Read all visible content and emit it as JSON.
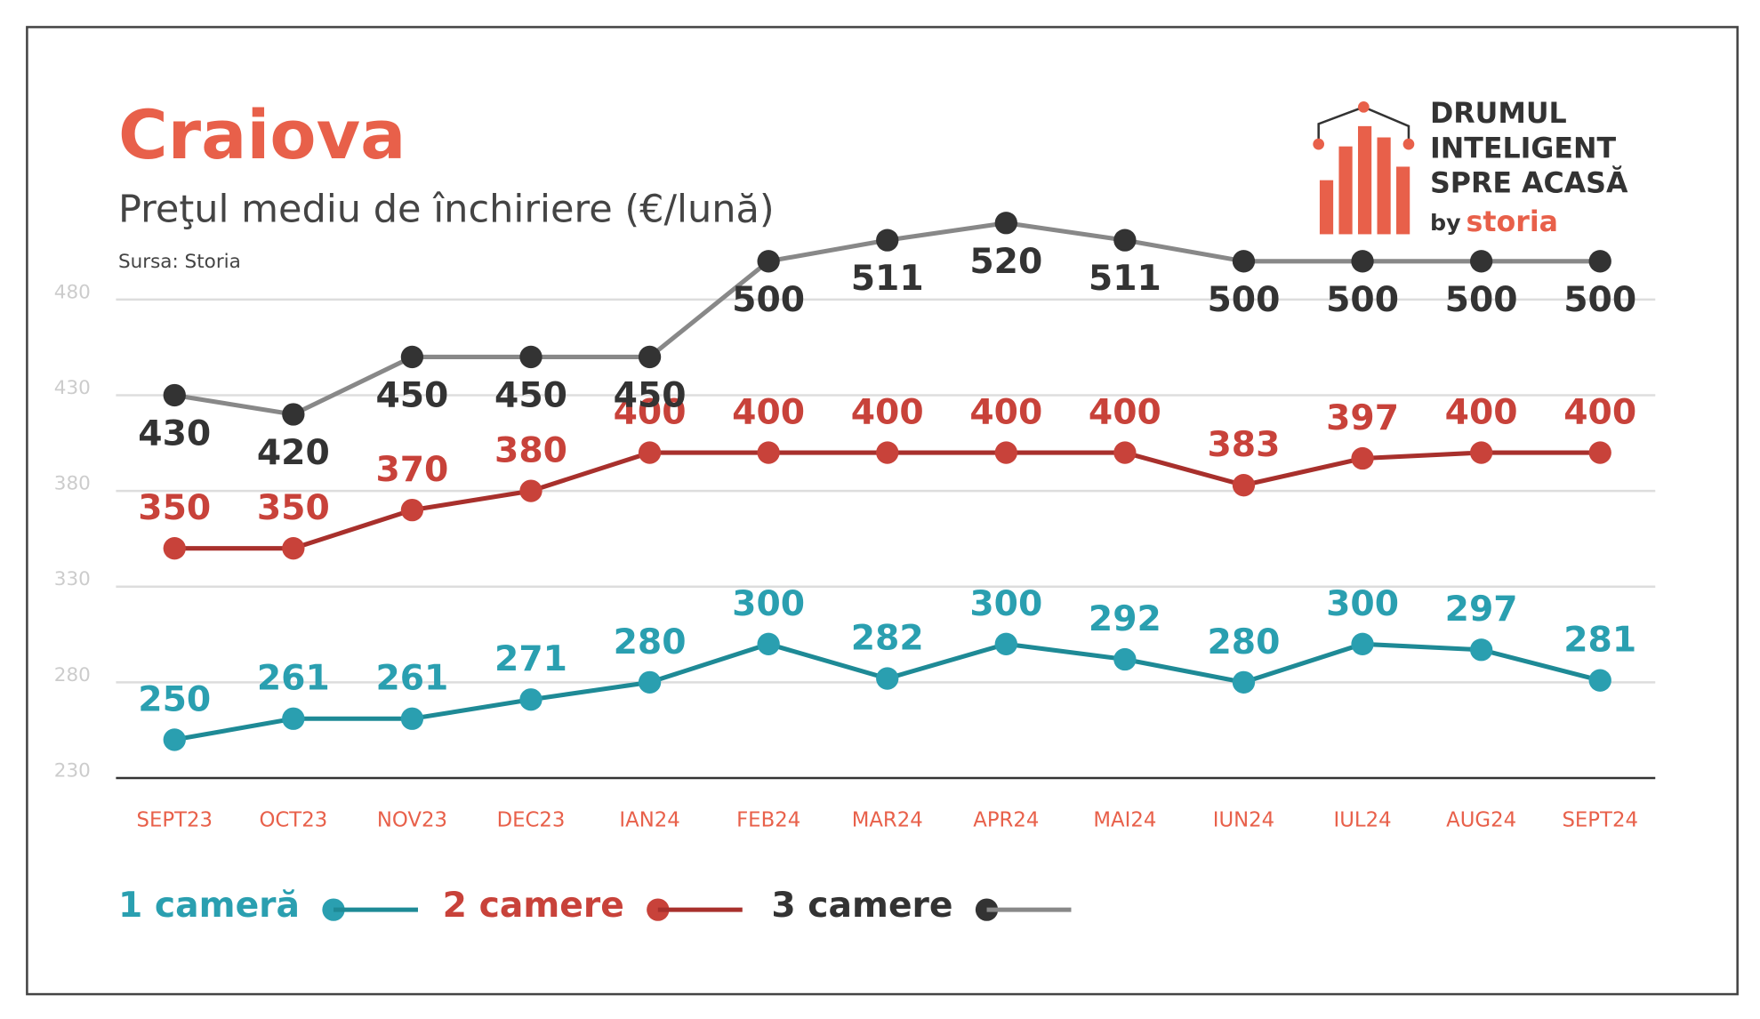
{
  "chart_data": {
    "type": "line",
    "title": "Craiova",
    "subtitle": "Preţul mediu de închiriere (€/lună)",
    "source": "Sursa: Storia",
    "categories": [
      "SEPT23",
      "OCT23",
      "NOV23",
      "DEC23",
      "IAN24",
      "FEB24",
      "MAR24",
      "APR24",
      "MAI24",
      "IUN24",
      "IUL24",
      "AUG24",
      "SEPT24"
    ],
    "series": [
      {
        "name": "1 cameră",
        "color": "#2a9fb0",
        "values": [
          250,
          261,
          261,
          271,
          280,
          300,
          282,
          300,
          292,
          280,
          300,
          297,
          281
        ]
      },
      {
        "name": "2 camere",
        "color": "#c8423a",
        "values": [
          350,
          350,
          370,
          380,
          400,
          400,
          400,
          400,
          400,
          383,
          397,
          400,
          400
        ]
      },
      {
        "name": "3 camere",
        "color": "#333333",
        "values": [
          430,
          420,
          450,
          450,
          450,
          500,
          511,
          520,
          511,
          500,
          500,
          500,
          500
        ]
      }
    ],
    "ylim": [
      230,
      520
    ],
    "yticks": [
      230,
      280,
      330,
      380,
      430,
      480
    ],
    "grid": true
  },
  "logo": {
    "lines": [
      "DRUMUL",
      "INTELIGENT",
      "SPRE ACASĂ"
    ],
    "by": "by",
    "brand": "storia"
  }
}
